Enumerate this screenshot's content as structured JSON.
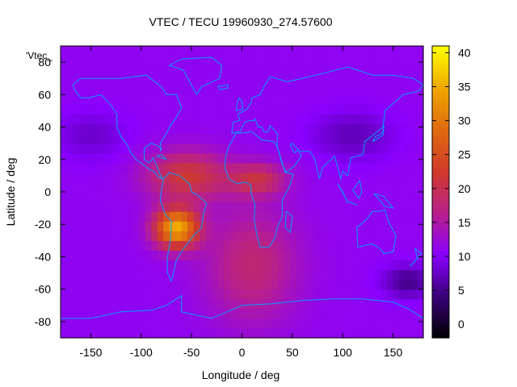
{
  "chart_data": {
    "type": "heatmap",
    "title": "VTEC / TECU 19960930_274.57600",
    "xlabel": "Longitude / deg",
    "ylabel": "Latitude / deg",
    "xlim": [
      -180,
      180
    ],
    "ylim": [
      -90,
      90
    ],
    "x_ticks": [
      -150,
      -100,
      -50,
      0,
      50,
      100,
      150
    ],
    "y_ticks": [
      -80,
      -60,
      -40,
      -20,
      0,
      20,
      40,
      60,
      80
    ],
    "colorbar": {
      "range": [
        -2,
        41
      ],
      "ticks": [
        0,
        5,
        10,
        15,
        20,
        25,
        30,
        35,
        40
      ],
      "palette": [
        "#000000",
        "#3a0078",
        "#8a00ff",
        "#b8208a",
        "#d03a2a",
        "#e06a10",
        "#f0a800",
        "#ffff00"
      ]
    },
    "legend_text": "'Vtec_",
    "overlay": "coastlines",
    "coastline_color": "#00a0ff",
    "background_level": 11,
    "field_features": [
      {
        "name": "south-america-peak",
        "lon": -65,
        "lat": -22,
        "value": 35,
        "spread_lon": 22,
        "spread_lat": 12
      },
      {
        "name": "equatorial-crest-west",
        "lon": -55,
        "lat": 10,
        "value": 22,
        "spread_lon": 40,
        "spread_lat": 15
      },
      {
        "name": "africa-crest",
        "lon": 15,
        "lat": 8,
        "value": 20,
        "spread_lon": 28,
        "spread_lat": 10
      },
      {
        "name": "south-atlantic-band",
        "lon": 10,
        "lat": -45,
        "value": 18,
        "spread_lon": 45,
        "spread_lat": 35
      },
      {
        "name": "asia-low",
        "lon": 110,
        "lat": 35,
        "value": 7,
        "spread_lon": 40,
        "spread_lat": 15
      },
      {
        "name": "southern-pacific-low",
        "lon": 165,
        "lat": -55,
        "value": 5,
        "spread_lon": 25,
        "spread_lat": 10
      },
      {
        "name": "northern-pacific-low",
        "lon": -150,
        "lat": 35,
        "value": 8,
        "spread_lon": 35,
        "spread_lat": 15
      }
    ]
  }
}
